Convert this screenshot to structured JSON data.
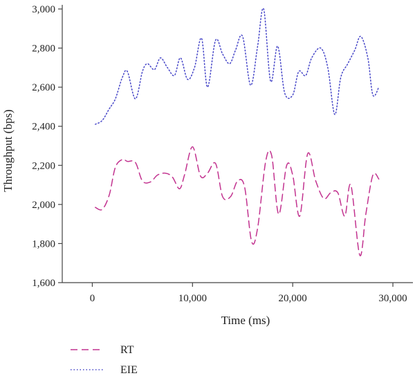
{
  "chart_data": {
    "type": "line",
    "title": "",
    "xlabel": "Time (ms)",
    "ylabel": "Throughput (bps)",
    "xlim": [
      -3000,
      32000
    ],
    "ylim": [
      1600,
      3000
    ],
    "xticks": [
      0,
      10000,
      20000,
      30000
    ],
    "xtick_labels": [
      "0",
      "10,000",
      "20,000",
      "30,000"
    ],
    "yticks": [
      1600,
      1800,
      2000,
      2200,
      2400,
      2600,
      2800,
      3000
    ],
    "ytick_labels": [
      "1,600",
      "1,800",
      "2,000",
      "2,200",
      "2,400",
      "2,600",
      "2,800",
      "3,000"
    ],
    "grid": false,
    "legend_position": "bottom-left",
    "series": [
      {
        "name": "RT",
        "color": "#c2328f",
        "style": "dashed",
        "x": [
          300,
          1000,
          1700,
          2300,
          3000,
          3500,
          4300,
          5000,
          5800,
          6500,
          7300,
          8000,
          8700,
          9200,
          10000,
          10800,
          11500,
          12300,
          13000,
          13800,
          14500,
          15200,
          15900,
          16500,
          17300,
          17900,
          18600,
          19400,
          20000,
          20700,
          21500,
          22300,
          23100,
          23800,
          24500,
          25200,
          25800,
          26700,
          27300,
          28000,
          28600
        ],
        "y": [
          1985,
          1975,
          2050,
          2190,
          2230,
          2220,
          2215,
          2120,
          2115,
          2150,
          2160,
          2140,
          2080,
          2150,
          2295,
          2145,
          2160,
          2210,
          2040,
          2040,
          2120,
          2090,
          1810,
          1880,
          2220,
          2250,
          1950,
          2200,
          2150,
          1940,
          2260,
          2120,
          2030,
          2060,
          2060,
          1940,
          2100,
          1740,
          1950,
          2150,
          2130
        ]
      },
      {
        "name": "EIE",
        "color": "#4646c8",
        "style": "dotted",
        "x": [
          300,
          1000,
          1700,
          2300,
          3000,
          3500,
          4300,
          5000,
          5500,
          6200,
          6800,
          7500,
          8200,
          8800,
          9500,
          10200,
          10900,
          11500,
          12300,
          13000,
          13700,
          14300,
          15000,
          15800,
          16500,
          17100,
          17800,
          18500,
          19200,
          20000,
          20600,
          21300,
          21900,
          22800,
          23500,
          24200,
          24800,
          25500,
          26200,
          26800,
          27500,
          28000,
          28600
        ],
        "y": [
          2410,
          2430,
          2490,
          2540,
          2650,
          2680,
          2540,
          2680,
          2720,
          2690,
          2750,
          2700,
          2660,
          2750,
          2640,
          2700,
          2850,
          2600,
          2840,
          2770,
          2720,
          2790,
          2860,
          2610,
          2810,
          3000,
          2630,
          2810,
          2570,
          2560,
          2680,
          2660,
          2750,
          2800,
          2700,
          2460,
          2650,
          2720,
          2790,
          2860,
          2750,
          2560,
          2600
        ]
      }
    ]
  }
}
